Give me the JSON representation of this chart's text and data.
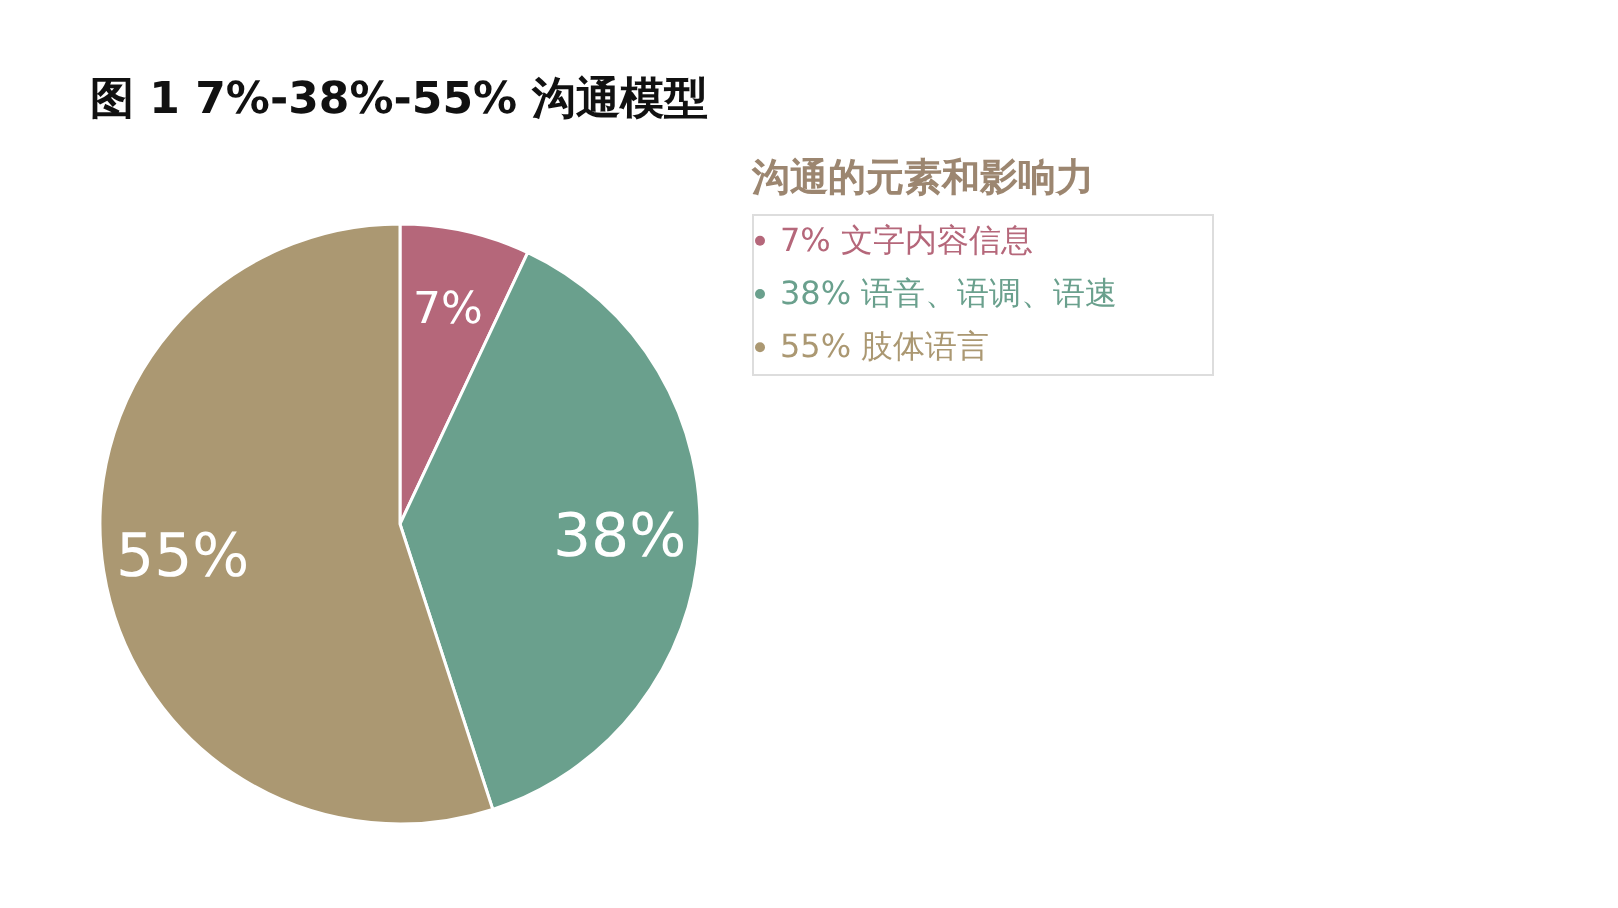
{
  "chart_data": {
    "type": "pie",
    "title": "图 1  7%-38%-55% 沟通模型",
    "legend_title": "沟通的元素和影响力",
    "categories": [
      "7% 文字内容信息",
      "38% 语音、语调、语速",
      "55% 肢体语言"
    ],
    "values": [
      7,
      38,
      55
    ],
    "colors": [
      "#b5677a",
      "#6aa08d",
      "#ab9872"
    ],
    "value_labels": [
      "7%",
      "38%",
      "55%"
    ],
    "legend": "right"
  }
}
